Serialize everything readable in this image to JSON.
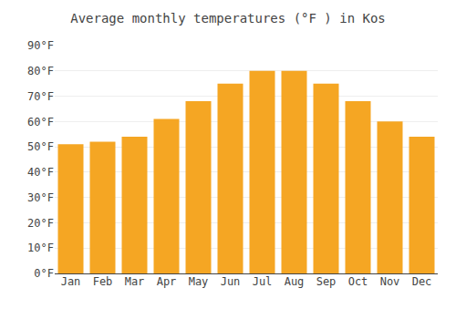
{
  "chart_data": {
    "type": "bar",
    "title": "Average monthly temperatures (°F ) in Kos",
    "categories": [
      "Jan",
      "Feb",
      "Mar",
      "Apr",
      "May",
      "Jun",
      "Jul",
      "Aug",
      "Sep",
      "Oct",
      "Nov",
      "Dec"
    ],
    "values": [
      51,
      52,
      54,
      61,
      68,
      75,
      80,
      80,
      75,
      68,
      60,
      54
    ],
    "color": "#F5A623",
    "ylim": [
      0,
      90
    ],
    "yticks": [
      {
        "value": 0,
        "label": "0°F"
      },
      {
        "value": 10,
        "label": "10°F"
      },
      {
        "value": 20,
        "label": "20°F"
      },
      {
        "value": 30,
        "label": "30°F"
      },
      {
        "value": 40,
        "label": "40°F"
      },
      {
        "value": 50,
        "label": "50°F"
      },
      {
        "value": 60,
        "label": "60°F"
      },
      {
        "value": 70,
        "label": "70°F"
      },
      {
        "value": 80,
        "label": "80°F"
      },
      {
        "value": 90,
        "label": "90°F"
      }
    ],
    "grid": true
  }
}
